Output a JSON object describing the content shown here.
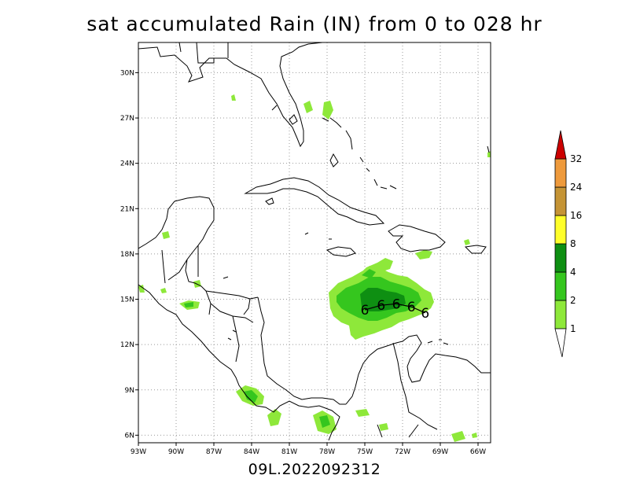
{
  "title": "sat accumulated Rain (IN) from 0 to 028 hr",
  "footer": "09L.2022092312",
  "map": {
    "lon_range": [
      -93,
      -65
    ],
    "lat_range": [
      5.5,
      32
    ],
    "lon_ticks": [
      "93W",
      "90W",
      "87W",
      "84W",
      "81W",
      "78W",
      "75W",
      "72W",
      "69W",
      "66W"
    ],
    "lat_ticks": [
      "6N",
      "9N",
      "12N",
      "15N",
      "18N",
      "21N",
      "24N",
      "27N",
      "30N"
    ],
    "grid": "dotted"
  },
  "colorbar": {
    "levels": [
      "1",
      "2",
      "4",
      "8",
      "16",
      "24",
      "32"
    ],
    "colors": [
      "#8ee83a",
      "#35c61e",
      "#0e8f12",
      "#ffff2a",
      "#c59435",
      "#ee9a3c",
      "#cc0000"
    ]
  },
  "storm_track": {
    "symbol": "6",
    "points": [
      {
        "lon": -75.0,
        "lat": 14.3
      },
      {
        "lon": -73.7,
        "lat": 14.6
      },
      {
        "lon": -72.5,
        "lat": 14.7
      },
      {
        "lon": -71.3,
        "lat": 14.5
      },
      {
        "lon": -70.2,
        "lat": 14.1
      }
    ]
  }
}
